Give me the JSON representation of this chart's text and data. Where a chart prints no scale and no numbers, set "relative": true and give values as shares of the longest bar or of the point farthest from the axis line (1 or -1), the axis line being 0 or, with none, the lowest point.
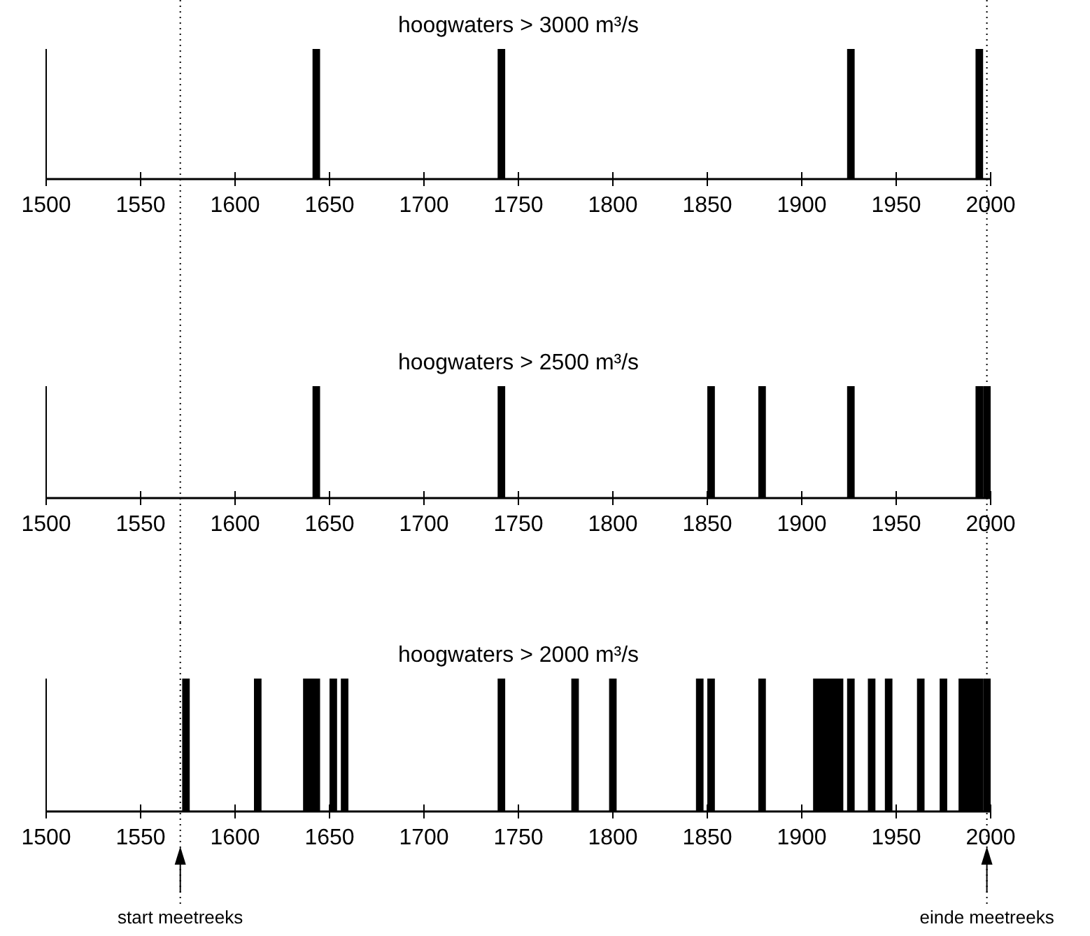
{
  "chart_data": [
    {
      "type": "bar",
      "title": "hoogwaters > 3000 m³/s",
      "relative": true,
      "x": [
        1643,
        1741,
        1926,
        1994
      ],
      "values": [
        1,
        1,
        1,
        1
      ],
      "color": "#000000",
      "xlim": [
        1500,
        2000
      ],
      "xticks": [
        1500,
        1550,
        1600,
        1650,
        1700,
        1750,
        1800,
        1850,
        1900,
        1950,
        2000
      ],
      "ref_lines": [
        {
          "axis": "x",
          "value": 1571,
          "line_style": "dotted"
        },
        {
          "axis": "x",
          "value": 1998,
          "line_style": "dotted"
        }
      ]
    },
    {
      "type": "bar",
      "title": "hoogwaters > 2500 m³/s",
      "relative": true,
      "x": [
        1643,
        1741,
        1852,
        1879,
        1926,
        1994,
        1998
      ],
      "values": [
        1,
        1,
        1,
        1,
        1,
        1,
        1
      ],
      "color": "#000000",
      "xlim": [
        1500,
        2000
      ],
      "xticks": [
        1500,
        1550,
        1600,
        1650,
        1700,
        1750,
        1800,
        1850,
        1900,
        1950,
        2000
      ],
      "ref_lines": [
        {
          "axis": "x",
          "value": 1571,
          "line_style": "dotted"
        },
        {
          "axis": "x",
          "value": 1998,
          "line_style": "dotted"
        }
      ]
    },
    {
      "type": "bar",
      "title": "hoogwaters > 2000 m³/s",
      "relative": true,
      "x": [
        1574,
        1612,
        1638,
        1641,
        1643,
        1652,
        1658,
        1741,
        1780,
        1800,
        1846,
        1852,
        1879,
        1908,
        1911,
        1914,
        1917,
        1920,
        1926,
        1937,
        1946,
        1963,
        1975,
        1985,
        1988,
        1991,
        1994,
        1998
      ],
      "values": [
        1,
        1,
        1,
        1,
        1,
        1,
        1,
        1,
        1,
        1,
        1,
        1,
        1,
        1,
        1,
        1,
        1,
        1,
        1,
        1,
        1,
        1,
        1,
        1,
        1,
        1,
        1,
        1
      ],
      "color": "#000000",
      "xlim": [
        1500,
        2000
      ],
      "xticks": [
        1500,
        1550,
        1600,
        1650,
        1700,
        1750,
        1800,
        1850,
        1900,
        1950,
        2000
      ],
      "ref_lines": [
        {
          "axis": "x",
          "value": 1571,
          "label": "start meetreeks",
          "line_style": "dotted"
        },
        {
          "axis": "x",
          "value": 1998,
          "label": "einde meetreeks",
          "line_style": "dotted"
        }
      ]
    }
  ]
}
